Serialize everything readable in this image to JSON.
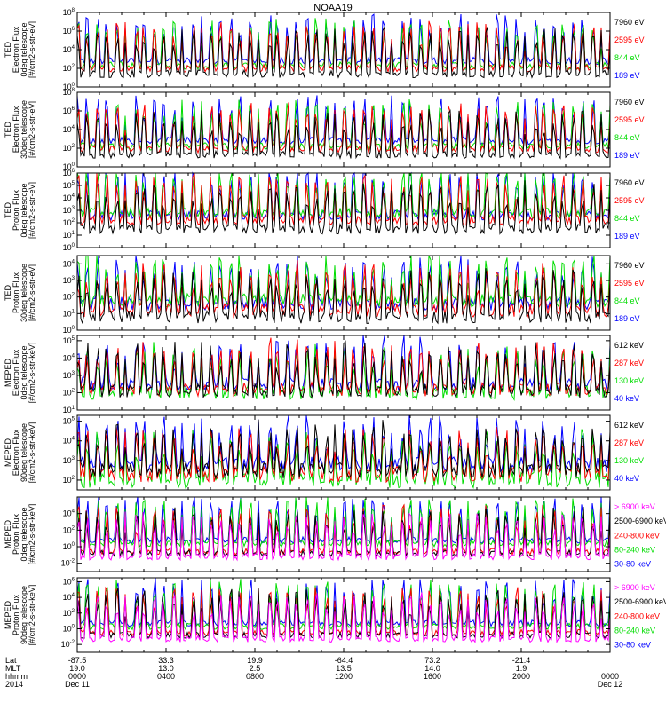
{
  "chart_data": {
    "type": "line",
    "title": "NOAA19",
    "x_axis": {
      "rows": [
        {
          "label": "Lat",
          "ticks": [
            "-87.5",
            "33.3",
            "19.9",
            "-64.4",
            "73.2",
            "-21.4",
            ""
          ]
        },
        {
          "label": "MLT",
          "ticks": [
            "19.0",
            "13.0",
            "2.5",
            "13.5",
            "14.0",
            "1.9",
            ""
          ]
        },
        {
          "label": "hhmm",
          "ticks": [
            "0000",
            "0400",
            "0800",
            "1200",
            "1600",
            "2000",
            "0000"
          ]
        },
        {
          "label": "2014",
          "ticks": [
            "Dec 11",
            "",
            "",
            "",
            "",
            "",
            "Dec 12"
          ]
        }
      ]
    },
    "panels": [
      {
        "ylabel": [
          "TED",
          "Electron Flux",
          "0deg telescope",
          "[#/cm2-s-str-eV]"
        ],
        "yticks": [
          "10^0",
          "10^2",
          "10^4",
          "10^6",
          "10^8"
        ],
        "ylim_exp": [
          0,
          8
        ],
        "legend": [
          {
            "name": "7960 eV",
            "color": "#000000"
          },
          {
            "name": "2595 eV",
            "color": "#ff0000"
          },
          {
            "name": "844 eV",
            "color": "#00dd00"
          },
          {
            "name": "189 eV",
            "color": "#0000ff"
          }
        ],
        "series_levels_exp": {
          "#0000ff": 2.8,
          "#00dd00": 2.3,
          "#ff0000": 2.0,
          "#000000": 1.4
        }
      },
      {
        "ylabel": [
          "TED",
          "Electron Flux",
          "30deg telescope",
          "[#/cm2-s-str-eV]"
        ],
        "yticks": [
          "10^0",
          "10^2",
          "10^4",
          "10^6",
          "10^8"
        ],
        "ylim_exp": [
          0,
          8
        ],
        "legend": [
          {
            "name": "7960 eV",
            "color": "#000000"
          },
          {
            "name": "2595 eV",
            "color": "#ff0000"
          },
          {
            "name": "844 eV",
            "color": "#00dd00"
          },
          {
            "name": "189 eV",
            "color": "#0000ff"
          }
        ],
        "series_levels_exp": {
          "#0000ff": 2.8,
          "#00dd00": 2.2,
          "#ff0000": 1.9,
          "#000000": 1.3
        }
      },
      {
        "ylabel": [
          "TED",
          "Proton Flux",
          "0deg telescope",
          "[#/cm2-s-str-eV]"
        ],
        "yticks": [
          "10^0",
          "10^1",
          "10^2",
          "10^3",
          "10^4",
          "10^5",
          "10^6"
        ],
        "ylim_exp": [
          0,
          6
        ],
        "legend": [
          {
            "name": "7960 eV",
            "color": "#000000"
          },
          {
            "name": "2595 eV",
            "color": "#ff0000"
          },
          {
            "name": "844 eV",
            "color": "#00dd00"
          },
          {
            "name": "189 eV",
            "color": "#0000ff"
          }
        ],
        "series_levels_exp": {
          "#0000ff": 2.6,
          "#00dd00": 2.8,
          "#ff0000": 2.2,
          "#000000": 1.5
        }
      },
      {
        "ylabel": [
          "TED",
          "Proton Flux",
          "30deg telescope",
          "[#/cm2-s-str-eV]"
        ],
        "yticks": [
          "10^0",
          "10^1",
          "10^2",
          "10^3",
          "10^4"
        ],
        "ylim_exp": [
          0,
          4.5
        ],
        "legend": [
          {
            "name": "7960 eV",
            "color": "#000000"
          },
          {
            "name": "2595 eV",
            "color": "#ff0000"
          },
          {
            "name": "844 eV",
            "color": "#00dd00"
          },
          {
            "name": "189 eV",
            "color": "#0000ff"
          }
        ],
        "series_levels_exp": {
          "#0000ff": 1.6,
          "#00dd00": 1.8,
          "#ff0000": 1.2,
          "#000000": 0.8
        }
      },
      {
        "ylabel": [
          "MEPED",
          "Electron Flux",
          "0deg telescope",
          "[#/cm2-s-str-keV]"
        ],
        "yticks": [
          "10^1",
          "10^2",
          "10^3",
          "10^4",
          "10^5"
        ],
        "ylim_exp": [
          1,
          5.3
        ],
        "legend": [
          {
            "name": "612 keV",
            "color": "#000000"
          },
          {
            "name": "287 keV",
            "color": "#ff0000"
          },
          {
            "name": "130 keV",
            "color": "#00dd00"
          },
          {
            "name": "40 keV",
            "color": "#0000ff"
          }
        ],
        "series_levels_exp": {
          "#0000ff": 2.5,
          "#00dd00": 2.0,
          "#ff0000": 2.2,
          "#000000": 2.1
        }
      },
      {
        "ylabel": [
          "MEPED",
          "Electron Flux",
          "90deg telescope",
          "[#/cm2-s-str-keV]"
        ],
        "yticks": [
          "10^2",
          "10^3",
          "10^4",
          "10^5"
        ],
        "ylim_exp": [
          1.5,
          5.3
        ],
        "legend": [
          {
            "name": "612 keV",
            "color": "#000000"
          },
          {
            "name": "287 keV",
            "color": "#ff0000"
          },
          {
            "name": "130 keV",
            "color": "#00dd00"
          },
          {
            "name": "40 keV",
            "color": "#0000ff"
          }
        ],
        "series_levels_exp": {
          "#0000ff": 2.8,
          "#00dd00": 2.0,
          "#ff0000": 2.3,
          "#000000": 2.5
        }
      },
      {
        "ylabel": [
          "MEPED",
          "Proton Flux",
          "0deg telescope",
          "[#/cm2-s-str-keV]"
        ],
        "yticks": [
          "10^-2",
          "10^0",
          "10^2",
          "10^4"
        ],
        "ylim_exp": [
          -3,
          6
        ],
        "legend": [
          {
            "name": "> 6900 keV",
            "color": "#ff00ff"
          },
          {
            "name": "2500-6900 keV",
            "color": "#000000"
          },
          {
            "name": "240-800 keV",
            "color": "#ff0000"
          },
          {
            "name": "80-240 keV",
            "color": "#00dd00"
          },
          {
            "name": "30-80 keV",
            "color": "#0000ff"
          }
        ],
        "series_levels_exp": {
          "#0000ff": 0.8,
          "#00dd00": 0.4,
          "#ff0000": -0.6,
          "#000000": -0.8,
          "#ff00ff": -1.2
        }
      },
      {
        "ylabel": [
          "MEPED",
          "Proton Flux",
          "90deg telescope",
          "[#/cm2-s-str-keV]"
        ],
        "yticks": [
          "10^-2",
          "10^0",
          "10^2",
          "10^4",
          "10^6"
        ],
        "ylim_exp": [
          -3,
          6.5
        ],
        "legend": [
          {
            "name": "> 6900 keV",
            "color": "#ff00ff"
          },
          {
            "name": "2500-6900 keV",
            "color": "#000000"
          },
          {
            "name": "240-800 keV",
            "color": "#ff0000"
          },
          {
            "name": "80-240 keV",
            "color": "#00dd00"
          },
          {
            "name": "30-80 keV",
            "color": "#0000ff"
          }
        ],
        "series_levels_exp": {
          "#0000ff": 0.7,
          "#00dd00": 0.3,
          "#ff0000": -0.5,
          "#000000": -0.8,
          "#ff00ff": -1.3
        }
      }
    ],
    "orbit_pass_count": 28,
    "grid": false
  }
}
